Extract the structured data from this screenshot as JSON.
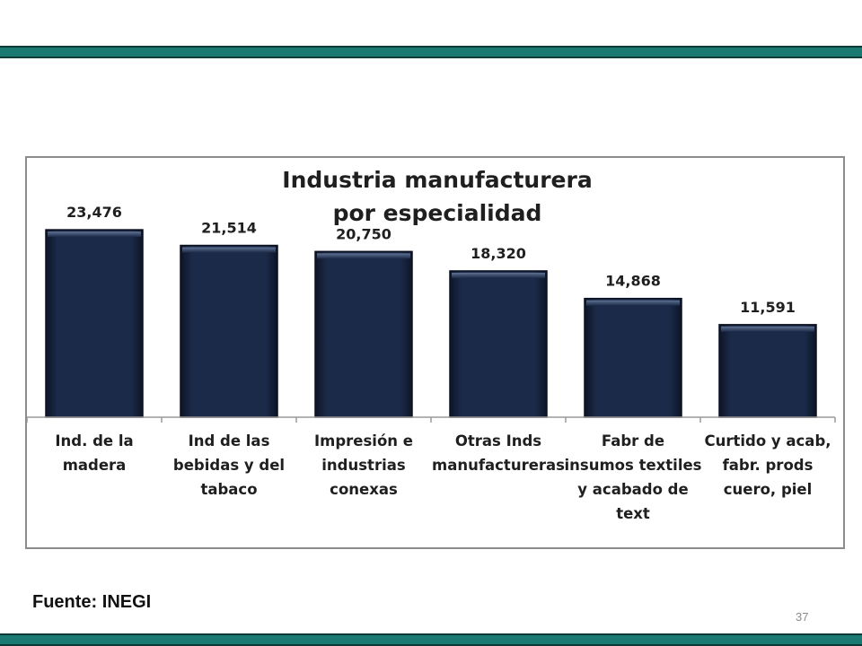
{
  "slide": {
    "source": "Fuente: INEGI",
    "page_number": "37",
    "accent_color": "#1a7a72"
  },
  "chart_data": {
    "type": "bar",
    "title": [
      "Industria manufacturera",
      "por especialidad"
    ],
    "categories": [
      [
        "Ind. de la",
        "madera"
      ],
      [
        "Ind de las",
        "bebidas y del",
        "tabaco"
      ],
      [
        "Impresión e",
        "industrias",
        "conexas"
      ],
      [
        "Otras Inds",
        "manufactureras"
      ],
      [
        "Fabr de",
        "insumos textiles",
        "y acabado de",
        "text"
      ],
      [
        "Curtido y acab,",
        "fabr. prods",
        "cuero, piel"
      ]
    ],
    "values": [
      23476,
      21514,
      20750,
      18320,
      14868,
      11591
    ],
    "value_labels": [
      "23,476",
      "21,514",
      "20,750",
      "18,320",
      "14,868",
      "11,591"
    ],
    "ylim": [
      0,
      27000
    ],
    "bar_color": "#1b2a48",
    "grid": false,
    "legend": "none"
  }
}
